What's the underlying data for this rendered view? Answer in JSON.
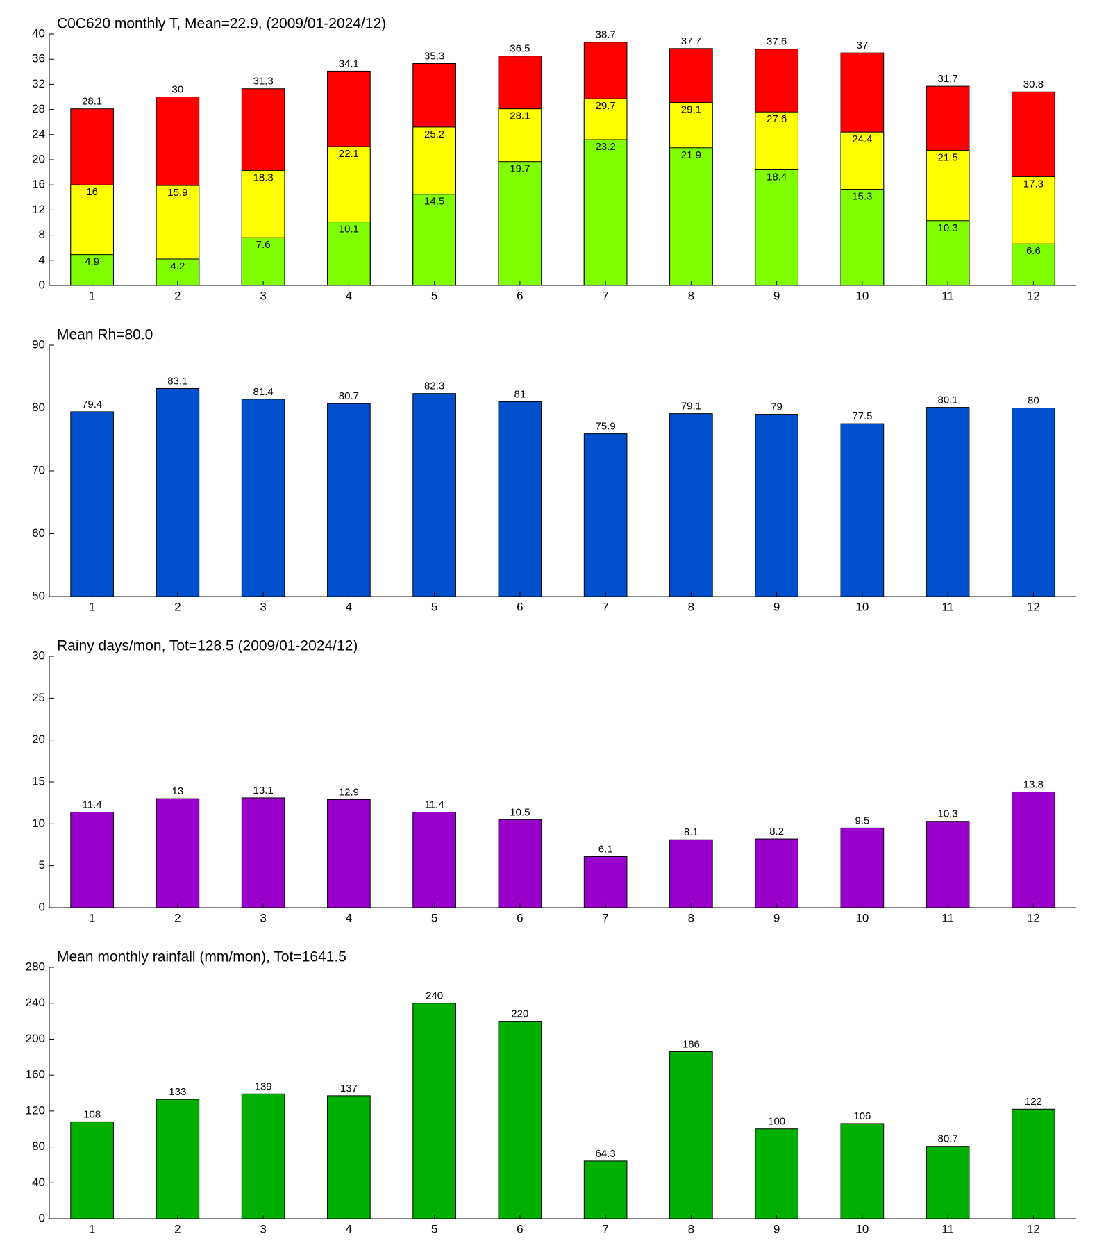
{
  "chart_data": [
    {
      "type": "bar",
      "title": "C0C620 monthly T, Mean=22.9, (2009/01-2024/12)",
      "categories": [
        1,
        2,
        3,
        4,
        5,
        6,
        7,
        8,
        9,
        10,
        11,
        12
      ],
      "series": [
        {
          "color": "#ff0000",
          "values": [
            28.1,
            30,
            31.3,
            34.1,
            35.3,
            36.5,
            38.7,
            37.7,
            37.6,
            37,
            31.7,
            30.8
          ]
        },
        {
          "color": "#ffff00",
          "values": [
            16,
            15.9,
            18.3,
            22.1,
            25.2,
            28.1,
            29.7,
            29.1,
            27.6,
            24.4,
            21.5,
            17.3
          ]
        },
        {
          "color": "#80ff00",
          "values": [
            4.9,
            4.2,
            7.6,
            10.1,
            14.5,
            19.7,
            23.2,
            21.9,
            18.4,
            15.3,
            10.3,
            6.6
          ]
        }
      ],
      "ylim": [
        0,
        40
      ],
      "yticks": [
        0,
        4,
        8,
        12,
        16,
        20,
        24,
        28,
        32,
        36,
        40
      ]
    },
    {
      "type": "bar",
      "title": "Mean Rh=80.0",
      "categories": [
        1,
        2,
        3,
        4,
        5,
        6,
        7,
        8,
        9,
        10,
        11,
        12
      ],
      "values": [
        79.4,
        83.1,
        81.4,
        80.7,
        82.3,
        81,
        75.9,
        79.1,
        79,
        77.5,
        80.1,
        80
      ],
      "color": "#004fcc",
      "ylim": [
        50,
        90
      ],
      "yticks": [
        50,
        60,
        70,
        80,
        90
      ]
    },
    {
      "type": "bar",
      "title": "Rainy days/mon, Tot=128.5 (2009/01-2024/12)",
      "categories": [
        1,
        2,
        3,
        4,
        5,
        6,
        7,
        8,
        9,
        10,
        11,
        12
      ],
      "values": [
        11.4,
        13,
        13.1,
        12.9,
        11.4,
        10.5,
        6.1,
        8.1,
        8.2,
        9.5,
        10.3,
        13.8
      ],
      "color": "#9900cc",
      "ylim": [
        0,
        30
      ],
      "yticks": [
        0,
        5,
        10,
        15,
        20,
        25,
        30
      ]
    },
    {
      "type": "bar",
      "title": "Mean monthly rainfall (mm/mon), Tot=1641.5",
      "categories": [
        1,
        2,
        3,
        4,
        5,
        6,
        7,
        8,
        9,
        10,
        11,
        12
      ],
      "values": [
        108,
        133,
        139,
        137,
        240,
        220,
        64.3,
        186,
        100,
        106,
        80.7,
        122
      ],
      "color": "#00b000",
      "ylim": [
        0,
        280
      ],
      "yticks": [
        0,
        40,
        80,
        120,
        160,
        200,
        240,
        280
      ]
    }
  ]
}
